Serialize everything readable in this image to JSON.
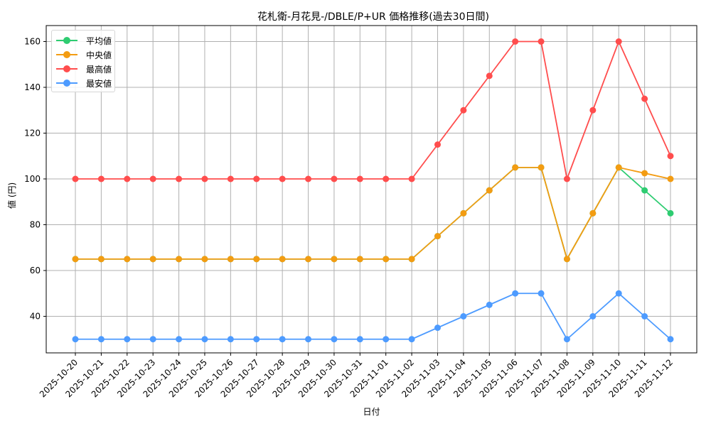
{
  "chart_data": {
    "type": "line",
    "title": "花札衛-月花見-/DBLE/P+UR 価格推移(過去30日間)",
    "xlabel": "日付",
    "ylabel": "値 (円)",
    "ylim": [
      24,
      166
    ],
    "yticks": [
      40,
      60,
      80,
      100,
      120,
      140,
      160
    ],
    "grid": true,
    "legend_position": "upper left",
    "categories": [
      "2025-10-20",
      "2025-10-21",
      "2025-10-22",
      "2025-10-23",
      "2025-10-24",
      "2025-10-25",
      "2025-10-26",
      "2025-10-27",
      "2025-10-28",
      "2025-10-29",
      "2025-10-30",
      "2025-10-31",
      "2025-11-01",
      "2025-11-02",
      "2025-11-03",
      "2025-11-04",
      "2025-11-05",
      "2025-11-06",
      "2025-11-07",
      "2025-11-08",
      "2025-11-09",
      "2025-11-10",
      "2025-11-11",
      "2025-11-12"
    ],
    "series": [
      {
        "name": "平均値",
        "color": "#2ecc71",
        "values": [
          65,
          65,
          65,
          65,
          65,
          65,
          65,
          65,
          65,
          65,
          65,
          65,
          65,
          65,
          75,
          85,
          95,
          105,
          105,
          65,
          85,
          105,
          95,
          85
        ]
      },
      {
        "name": "中央値",
        "color": "#f39c12",
        "values": [
          65,
          65,
          65,
          65,
          65,
          65,
          65,
          65,
          65,
          65,
          65,
          65,
          65,
          65,
          75,
          85,
          95,
          105,
          105,
          65,
          85,
          105,
          102.5,
          100
        ]
      },
      {
        "name": "最高値",
        "color": "#ff4d4d",
        "values": [
          100,
          100,
          100,
          100,
          100,
          100,
          100,
          100,
          100,
          100,
          100,
          100,
          100,
          100,
          115,
          130,
          145,
          160,
          160,
          100,
          130,
          160,
          135,
          110
        ]
      },
      {
        "name": "最安値",
        "color": "#4d9bff",
        "values": [
          30,
          30,
          30,
          30,
          30,
          30,
          30,
          30,
          30,
          30,
          30,
          30,
          30,
          30,
          35,
          40,
          45,
          50,
          50,
          30,
          40,
          50,
          40,
          30
        ]
      }
    ]
  }
}
